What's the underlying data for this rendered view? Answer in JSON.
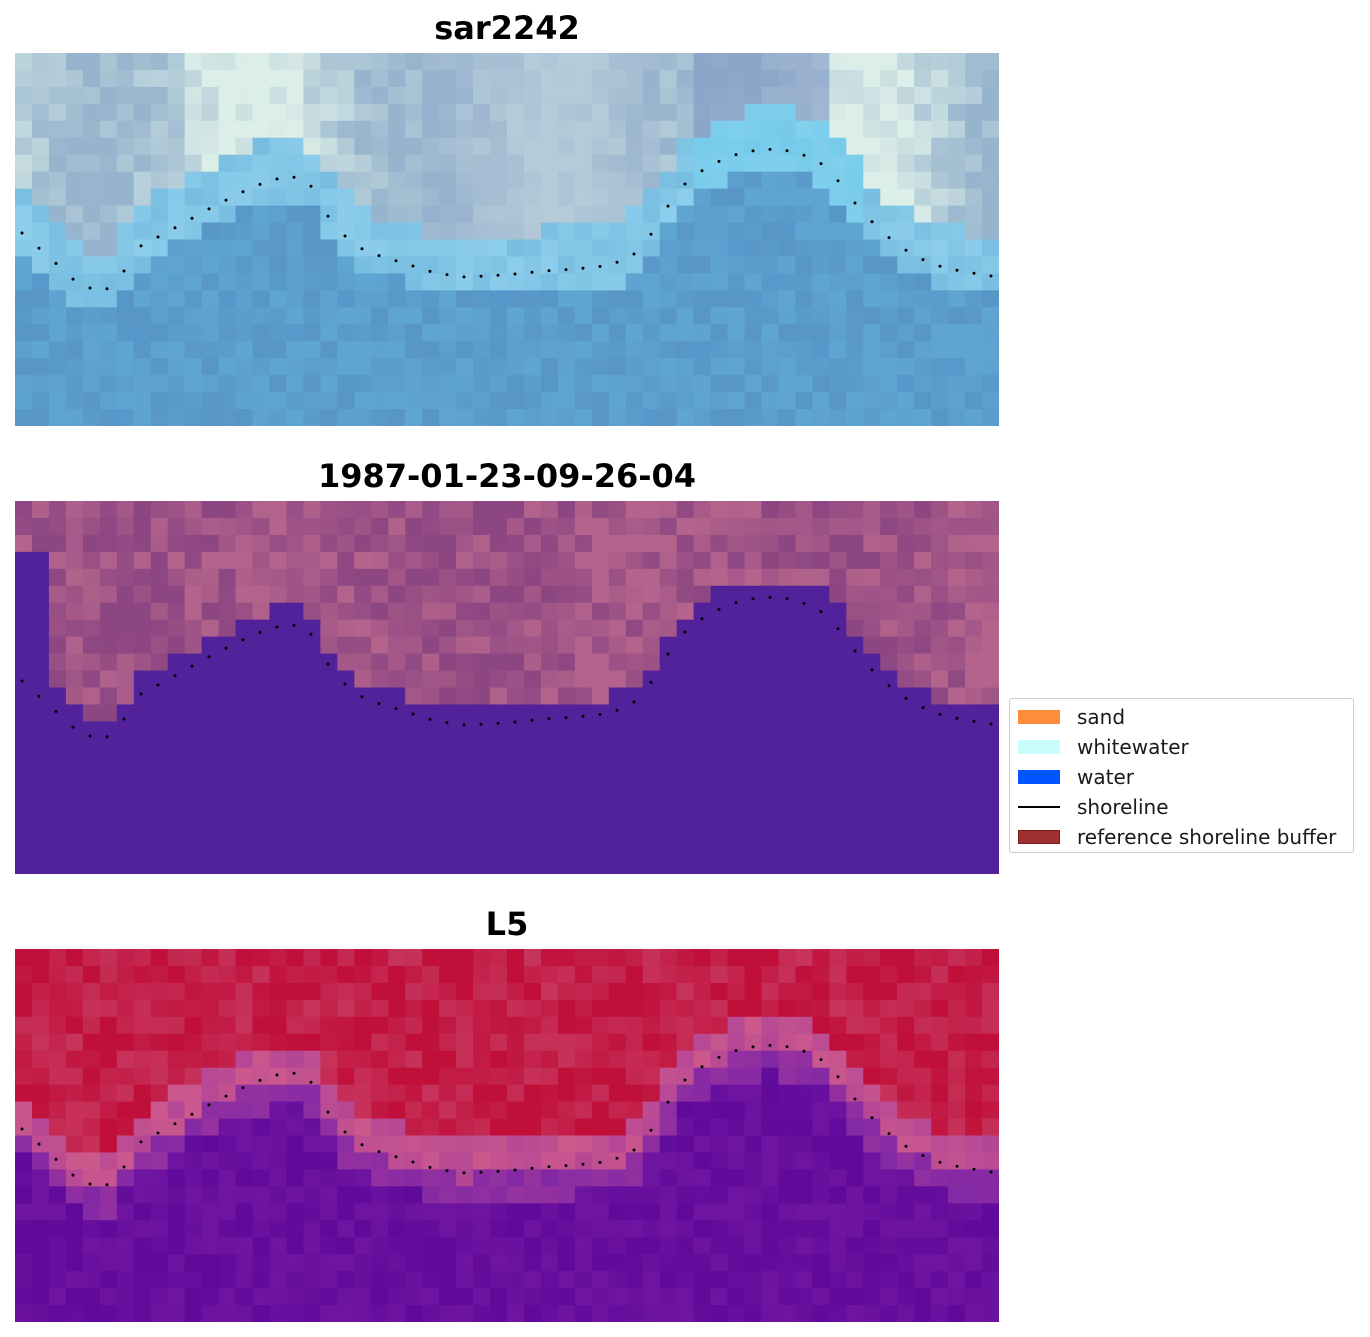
{
  "panels": [
    {
      "title": "sar2242",
      "style": "sar"
    },
    {
      "title": "1987-01-23-09-26-04",
      "style": "classified"
    },
    {
      "title": "L5",
      "style": "l5"
    }
  ],
  "legend": {
    "items": [
      {
        "label": "sand",
        "type": "patch",
        "color": "#ff8c3a"
      },
      {
        "label": "whitewater",
        "type": "patch",
        "color": "#c8fcfc"
      },
      {
        "label": "water",
        "type": "patch",
        "color": "#0055ff"
      },
      {
        "label": "shoreline",
        "type": "line",
        "color": "#000000"
      },
      {
        "label": "reference shoreline buffer",
        "type": "patch",
        "color": "#a03030"
      }
    ]
  },
  "colors": {
    "water_class": "#52229a",
    "buffer_class": "#9a4a86",
    "l5_land": "#b81845",
    "l5_water": "#5f0a9a",
    "sar_light": "#d6eef0",
    "sar_water": "#5a9cd0"
  }
}
